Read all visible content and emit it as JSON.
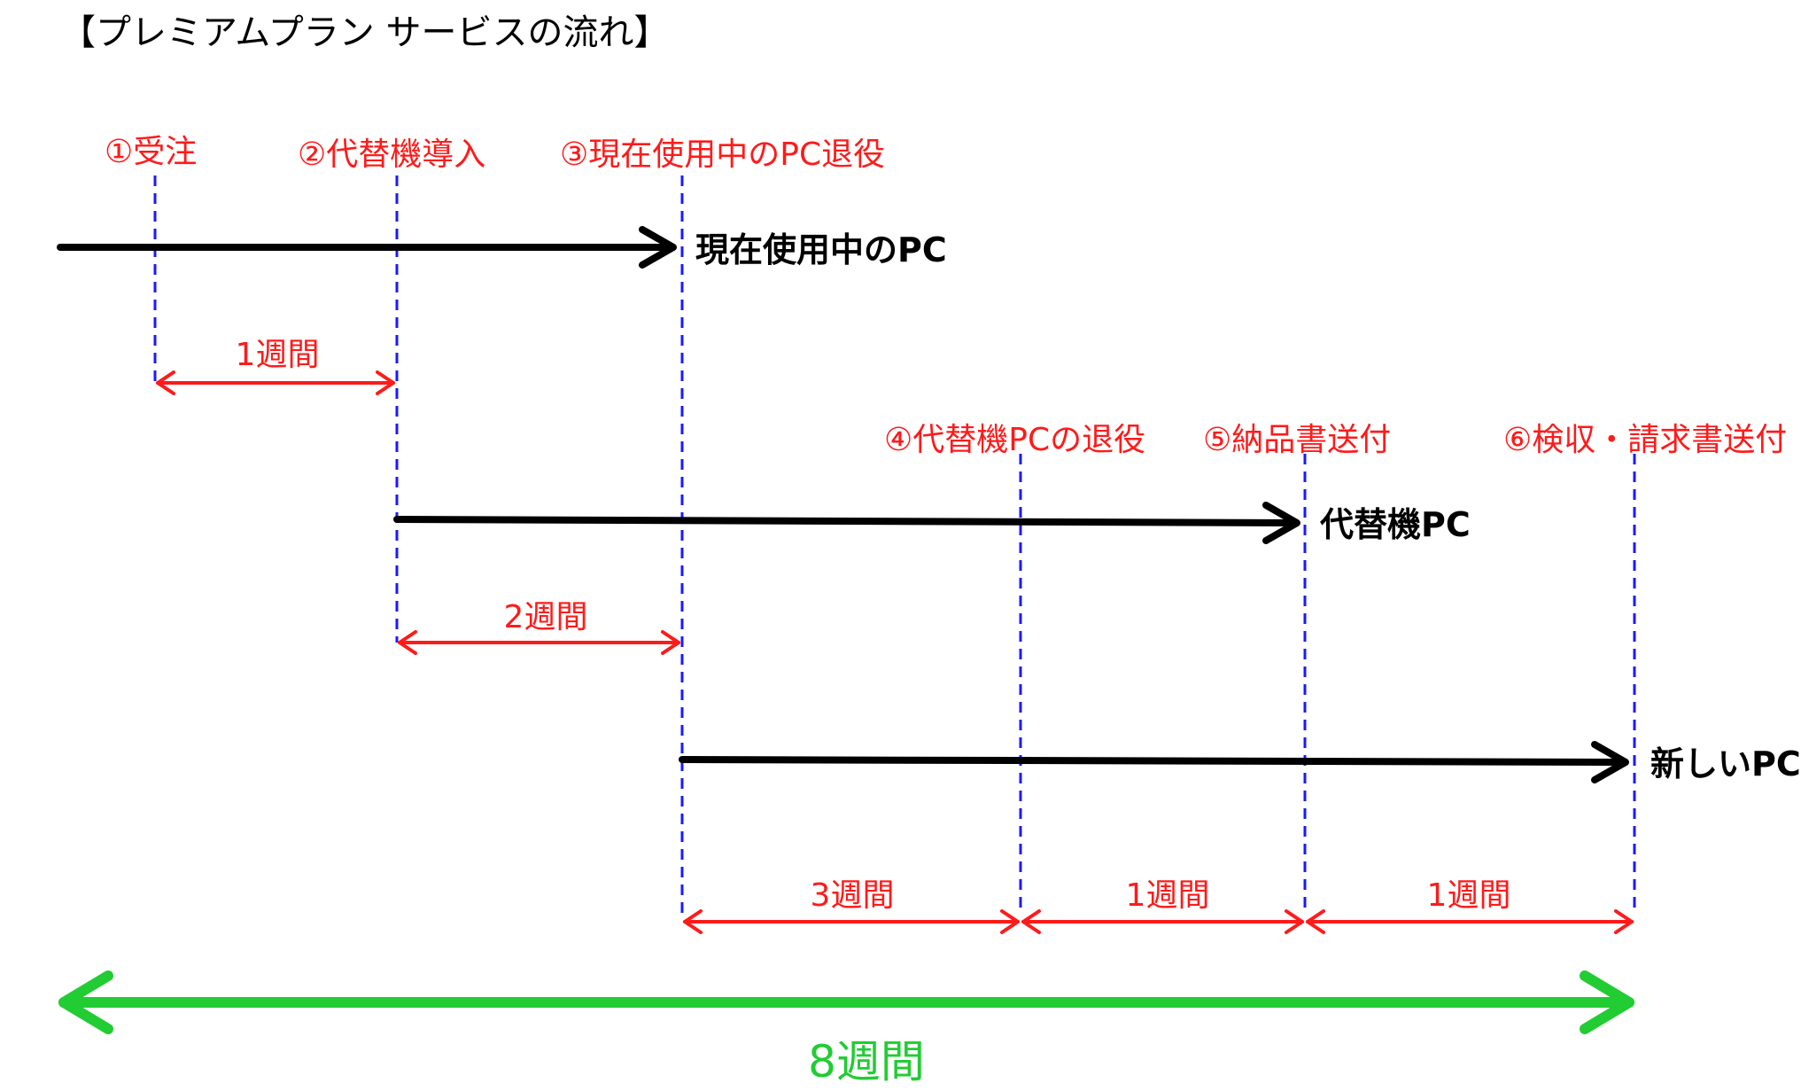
{
  "title": "【プレミアムプラン サービスの流れ】",
  "colors": {
    "event": "#ff1a1a",
    "guide": "#1a1aff",
    "track": "#000000",
    "total": "#22cc33"
  },
  "events": [
    {
      "label": "①受注"
    },
    {
      "label": "②代替機導入"
    },
    {
      "label": "③現在使用中のPC退役"
    },
    {
      "label": "④代替機PCの退役"
    },
    {
      "label": "⑤納品書送付"
    },
    {
      "label": "⑥検収・請求書送付"
    }
  ],
  "tracks": [
    {
      "label": "現在使用中のPC",
      "from": "start",
      "to_event": 3
    },
    {
      "label": "代替機PC",
      "from_event": 2,
      "to_event": 5
    },
    {
      "label": "新しいPC",
      "from_event": 3,
      "to_event": 6
    }
  ],
  "durations": [
    {
      "label": "1週間",
      "from_event": 1,
      "to_event": 2
    },
    {
      "label": "2週間",
      "from_event": 2,
      "to_event": 3
    },
    {
      "label": "3週間",
      "from_event": 3,
      "to_event": 4
    },
    {
      "label": "1週間",
      "from_event": 4,
      "to_event": 5
    },
    {
      "label": "1週間",
      "from_event": 5,
      "to_event": 6
    }
  ],
  "total": {
    "label": "8週間"
  }
}
